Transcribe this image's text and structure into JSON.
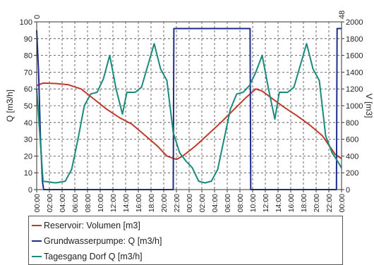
{
  "chart_data": {
    "type": "line",
    "x": [
      "00:00",
      "02:00",
      "04:00",
      "06:00",
      "08:00",
      "10:00",
      "12:00",
      "14:00",
      "16:00",
      "18:00",
      "20:00",
      "22:00",
      "00:00",
      "02:00",
      "04:00",
      "06:00",
      "08:00",
      "10:00",
      "12:00",
      "14:00",
      "16:00",
      "18:00",
      "20:00",
      "22:00",
      "00:00"
    ],
    "left_axis": {
      "label": "Q [m3/h]",
      "ylim": [
        0,
        100
      ],
      "ticks": [
        0,
        10,
        20,
        30,
        40,
        50,
        60,
        70,
        80,
        90,
        100
      ]
    },
    "right_axis": {
      "label": "V [m3]",
      "ylim": [
        0,
        2000
      ],
      "ticks": [
        0,
        200,
        400,
        600,
        800,
        1000,
        1200,
        1400,
        1600,
        1800,
        2000
      ]
    },
    "top_labels": {
      "left": "0",
      "right": "48"
    },
    "grid": true,
    "legend": "bottom",
    "series": [
      {
        "name": "Reservoir: Volumen [m3]",
        "axis": "right",
        "color": "#c0392b",
        "points": [
          [
            0,
            1240
          ],
          [
            1,
            1270
          ],
          [
            3,
            1265
          ],
          [
            5,
            1250
          ],
          [
            7,
            1200
          ],
          [
            9,
            1080
          ],
          [
            11,
            960
          ],
          [
            13,
            860
          ],
          [
            15,
            780
          ],
          [
            17,
            650
          ],
          [
            19,
            520
          ],
          [
            20.5,
            400
          ],
          [
            22,
            360
          ],
          [
            23,
            400
          ],
          [
            25,
            520
          ],
          [
            27,
            660
          ],
          [
            29,
            800
          ],
          [
            31,
            950
          ],
          [
            33,
            1100
          ],
          [
            34.5,
            1200
          ],
          [
            35.5,
            1175
          ],
          [
            37,
            1090
          ],
          [
            39,
            980
          ],
          [
            41,
            880
          ],
          [
            43,
            770
          ],
          [
            45,
            640
          ],
          [
            47,
            420
          ],
          [
            48,
            370
          ]
        ]
      },
      {
        "name": "Grundwasserpumpe: Q [m3/h]",
        "axis": "left",
        "color": "#1f2d8a",
        "points": [
          [
            0,
            95
          ],
          [
            0.3,
            70
          ],
          [
            0.6,
            30
          ],
          [
            0.9,
            5
          ],
          [
            1.1,
            0
          ],
          [
            21.5,
            0
          ],
          [
            21.6,
            96
          ],
          [
            33.6,
            96
          ],
          [
            33.7,
            0
          ],
          [
            47.2,
            0
          ],
          [
            47.3,
            96
          ],
          [
            48,
            96
          ]
        ]
      },
      {
        "name": "Tagesgang Dorf Q [m3/h]",
        "axis": "left",
        "color": "#1a8a7a",
        "points": [
          [
            0,
            60
          ],
          [
            1,
            5
          ],
          [
            3,
            4
          ],
          [
            4.5,
            5
          ],
          [
            5.5,
            12
          ],
          [
            6.5,
            30
          ],
          [
            7.5,
            50
          ],
          [
            8.5,
            57
          ],
          [
            9.5,
            58
          ],
          [
            10.5,
            66
          ],
          [
            11.5,
            80
          ],
          [
            12.5,
            60
          ],
          [
            13.5,
            45
          ],
          [
            14.2,
            58
          ],
          [
            15.5,
            58
          ],
          [
            16.5,
            61
          ],
          [
            17.5,
            74
          ],
          [
            18.5,
            87
          ],
          [
            19.5,
            72
          ],
          [
            20.5,
            65
          ],
          [
            21.5,
            34
          ],
          [
            22.5,
            22
          ],
          [
            23.5,
            17
          ],
          [
            24.5,
            13
          ],
          [
            25.5,
            5
          ],
          [
            26.5,
            4
          ],
          [
            27.5,
            5
          ],
          [
            28.5,
            12
          ],
          [
            29.5,
            30
          ],
          [
            30.5,
            48
          ],
          [
            31.5,
            57
          ],
          [
            32.5,
            58
          ],
          [
            33.5,
            62
          ],
          [
            34.5,
            70
          ],
          [
            35.5,
            80
          ],
          [
            36.5,
            60
          ],
          [
            37.5,
            42
          ],
          [
            38.2,
            58
          ],
          [
            39.5,
            58
          ],
          [
            40.5,
            61
          ],
          [
            41.5,
            74
          ],
          [
            42.5,
            87
          ],
          [
            43.5,
            72
          ],
          [
            44.5,
            65
          ],
          [
            45.5,
            32
          ],
          [
            46.5,
            22
          ],
          [
            47.2,
            18
          ],
          [
            48,
            13
          ]
        ]
      }
    ]
  }
}
